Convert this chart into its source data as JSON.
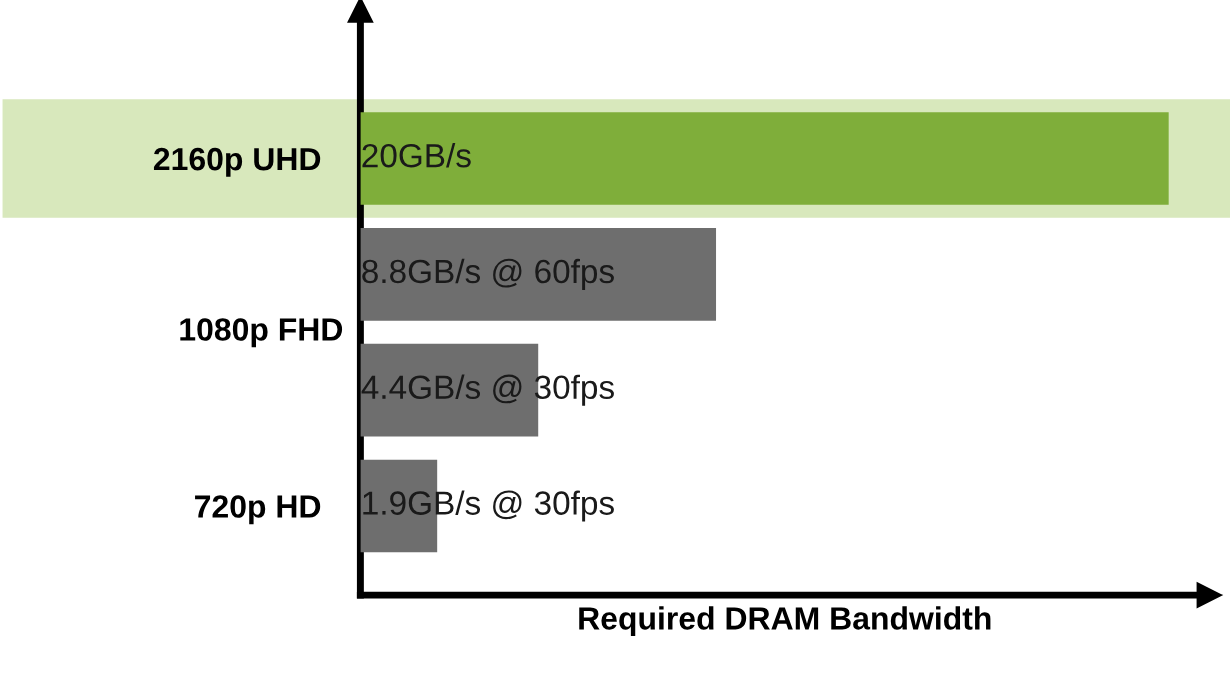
{
  "chart_data": {
    "type": "bar",
    "orientation": "horizontal",
    "xlim": [
      0,
      21
    ],
    "categories": [
      "2160p UHD",
      null,
      null,
      "720p HD"
    ],
    "values": [
      20,
      8.8,
      4.4,
      1.9
    ],
    "colors": [
      "#7fae3a",
      "#6e6e6e",
      "#6e6e6e",
      "#6e6e6e"
    ],
    "value_labels": [
      "20GB/s",
      "8.8GB/s @ 60fps",
      "4.4GB/s @ 30fps",
      "1.9GB/s @ 30fps"
    ],
    "annotations": [
      "1080p FHD"
    ],
    "bands": [
      {
        "axis": "y",
        "from": "2160p UHD",
        "to": "2160p UHD",
        "color": "#d8e8bc"
      }
    ],
    "xlabel": "Required DRAM Bandwidth",
    "grid": false,
    "legend": false
  }
}
